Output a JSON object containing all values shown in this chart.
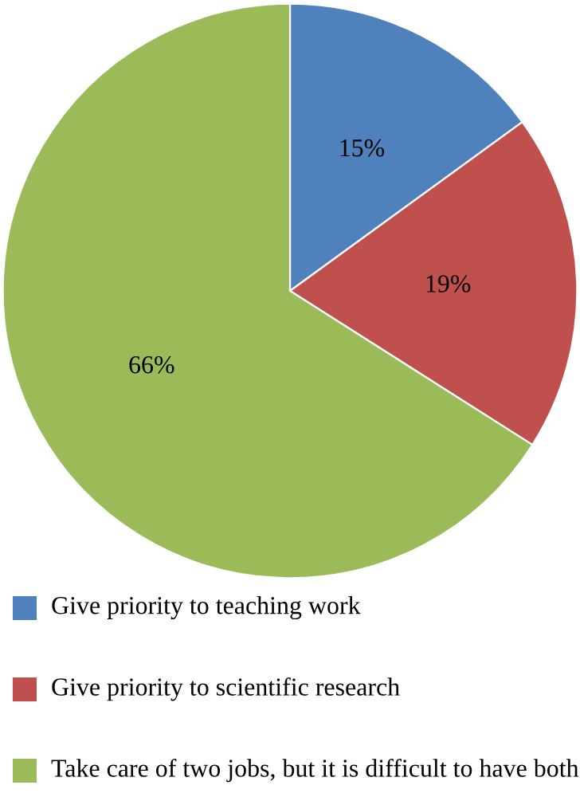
{
  "chart_data": {
    "type": "pie",
    "categories": [
      "Give priority to teaching work",
      "Give priority to scientific research",
      "Take care of two jobs, but it is difficult to have both"
    ],
    "values": [
      15,
      19,
      66
    ],
    "value_labels": [
      "15%",
      "19%",
      "66%"
    ],
    "colors": [
      "#4f81bd",
      "#c0504d",
      "#9bbb59"
    ],
    "legend": "bottom"
  }
}
